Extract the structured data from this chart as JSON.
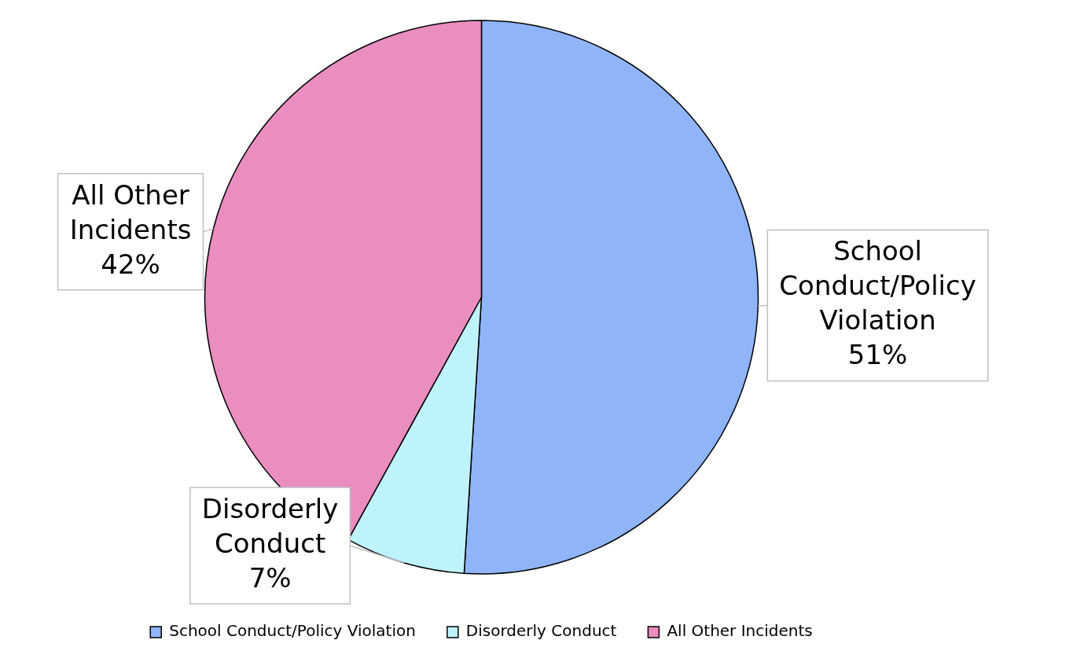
{
  "chart_data": {
    "type": "pie",
    "categories": [
      "School Conduct/Policy Violation",
      "Disorderly Conduct",
      "All Other Incidents"
    ],
    "values": [
      51,
      7,
      42
    ],
    "colors": [
      "#8fb4f8",
      "#bff3fb",
      "#ea8dbf"
    ],
    "value_labels": [
      "51%",
      "7%",
      "42%"
    ],
    "legend": "bottom"
  }
}
